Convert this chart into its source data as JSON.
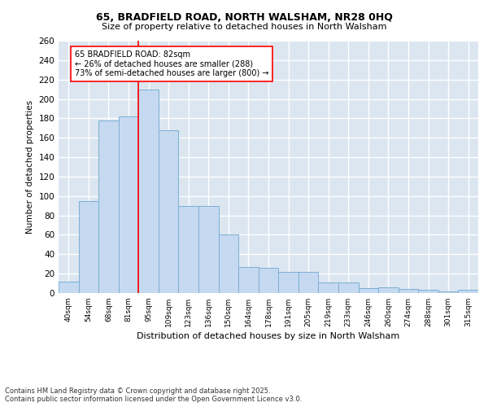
{
  "title1": "65, BRADFIELD ROAD, NORTH WALSHAM, NR28 0HQ",
  "title2": "Size of property relative to detached houses in North Walsham",
  "xlabel": "Distribution of detached houses by size in North Walsham",
  "ylabel": "Number of detached properties",
  "categories": [
    "40sqm",
    "54sqm",
    "68sqm",
    "81sqm",
    "95sqm",
    "109sqm",
    "123sqm",
    "136sqm",
    "150sqm",
    "164sqm",
    "178sqm",
    "191sqm",
    "205sqm",
    "219sqm",
    "233sqm",
    "246sqm",
    "260sqm",
    "274sqm",
    "288sqm",
    "301sqm",
    "315sqm"
  ],
  "values": [
    12,
    95,
    178,
    182,
    210,
    168,
    90,
    90,
    60,
    27,
    26,
    22,
    22,
    11,
    11,
    5,
    6,
    4,
    3,
    2,
    3
  ],
  "bar_color": "#c5d9f0",
  "bar_edge_color": "#7bafd4",
  "background_color": "#dce6f1",
  "grid_color": "#ffffff",
  "red_line_x": 3.5,
  "annotation_line1": "65 BRADFIELD ROAD: 82sqm",
  "annotation_line2": "← 26% of detached houses are smaller (288)",
  "annotation_line3": "73% of semi-detached houses are larger (800) →",
  "footer1": "Contains HM Land Registry data © Crown copyright and database right 2025.",
  "footer2": "Contains public sector information licensed under the Open Government Licence v3.0.",
  "ylim": [
    0,
    260
  ],
  "yticks": [
    0,
    20,
    40,
    60,
    80,
    100,
    120,
    140,
    160,
    180,
    200,
    220,
    240,
    260
  ]
}
